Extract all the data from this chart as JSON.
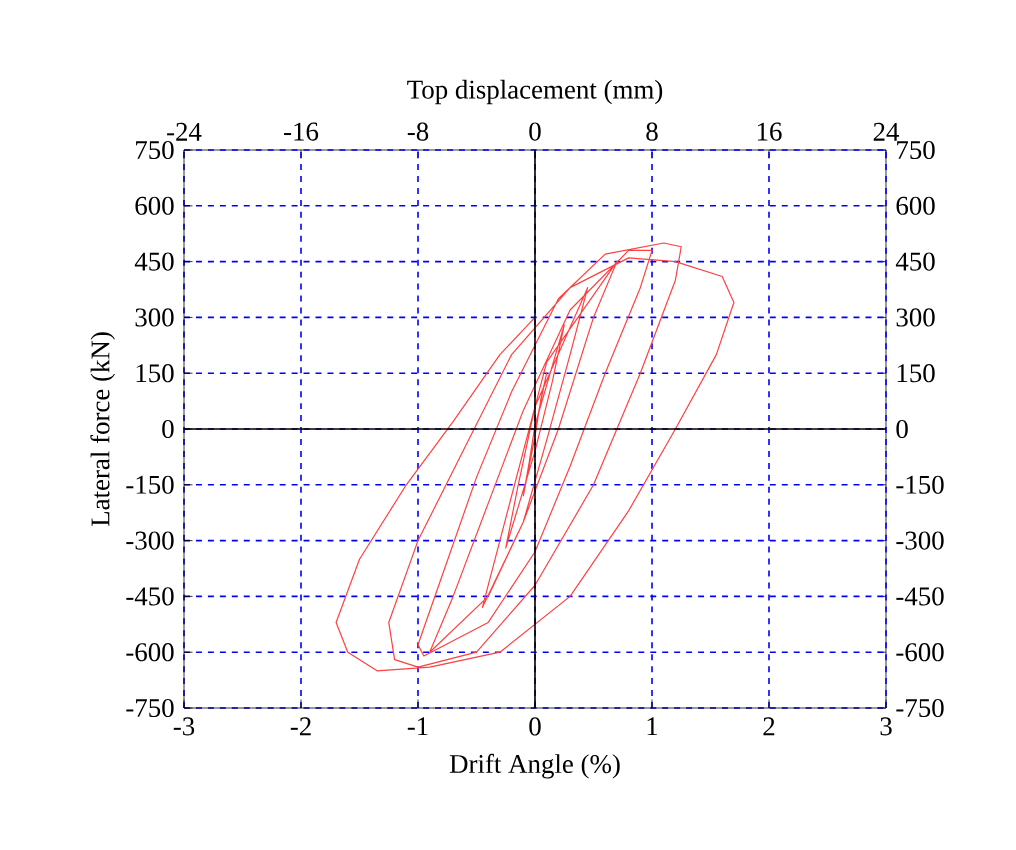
{
  "chart_data": {
    "type": "line",
    "xlabel": "Drift Angle (%)",
    "ylabel": "Lateral force (kN)",
    "x2label": "Top displacement (mm)",
    "xlim": [
      -3,
      3
    ],
    "xticks": [
      -3,
      -2,
      -1,
      0,
      1,
      2,
      3
    ],
    "ylim": [
      -750,
      750
    ],
    "yticks": [
      -750,
      -600,
      -450,
      -300,
      -150,
      0,
      150,
      300,
      450,
      600,
      750
    ],
    "x2lim": [
      -24,
      24
    ],
    "x2ticks": [
      -24,
      -16,
      -8,
      0,
      8,
      16,
      24
    ],
    "y2lim": [
      -750,
      750
    ],
    "y2ticks": [
      -750,
      -600,
      -450,
      -300,
      -150,
      0,
      150,
      300,
      450,
      600,
      750
    ],
    "grid": true,
    "marker": "none",
    "line_style": "solid",
    "series": [
      {
        "color": "#ff4040",
        "x": [
          0,
          0.1,
          0.05,
          0,
          -0.1,
          -0.05,
          0,
          0.25,
          0.15,
          0,
          -0.25,
          -0.15,
          0,
          0.45,
          0.3,
          0.1,
          -0.1,
          -0.45,
          -0.3,
          -0.1,
          0.1,
          0.7,
          0.5,
          0.2,
          -0.1,
          -0.4,
          -0.9,
          -0.7,
          -0.4,
          -0.1,
          0.3,
          0.8,
          1.0,
          0.9,
          0.6,
          0.3,
          0,
          -0.4,
          -0.95,
          -1.0,
          -0.8,
          -0.5,
          -0.2,
          0.2,
          0.6,
          1.1,
          1.25,
          1.2,
          0.9,
          0.5,
          0,
          -0.5,
          -1.0,
          -1.2,
          -1.25,
          -1.0,
          -0.6,
          -0.2,
          0.3,
          0.8,
          1.2,
          1.6,
          1.7,
          1.55,
          1.2,
          0.8,
          0.3,
          -0.3,
          -0.9,
          -1.35,
          -1.6,
          -1.7,
          -1.5,
          -1.1,
          -0.7,
          -0.3,
          0
        ],
        "values": [
          0,
          150,
          80,
          -20,
          -180,
          -90,
          10,
          280,
          130,
          -60,
          -320,
          -160,
          60,
          380,
          200,
          -30,
          -250,
          -480,
          -300,
          -60,
          180,
          450,
          300,
          0,
          -250,
          -450,
          -600,
          -450,
          -200,
          50,
          320,
          480,
          480,
          380,
          150,
          -100,
          -330,
          -520,
          -610,
          -580,
          -400,
          -130,
          100,
          350,
          470,
          500,
          490,
          400,
          150,
          -150,
          -420,
          -600,
          -640,
          -620,
          -520,
          -300,
          -50,
          200,
          380,
          460,
          450,
          410,
          340,
          200,
          0,
          -220,
          -450,
          -600,
          -640,
          -650,
          -600,
          -520,
          -350,
          -150,
          20,
          200,
          300
        ]
      }
    ]
  }
}
